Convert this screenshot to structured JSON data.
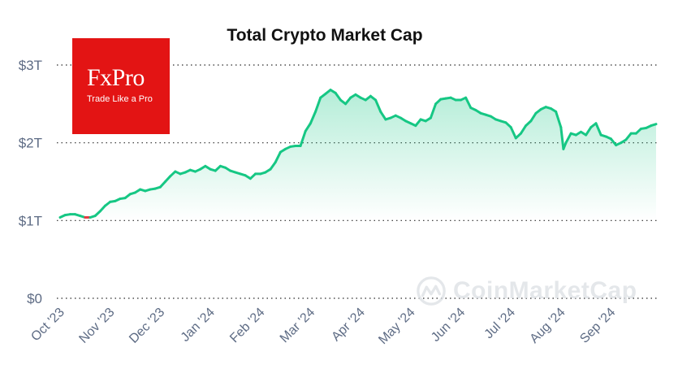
{
  "chart_data": {
    "type": "area",
    "title": "Total Crypto Market Cap",
    "unit": "USD trillions",
    "y_ticks": [
      "$0",
      "$1T",
      "$2T",
      "$3T"
    ],
    "y_tick_values": [
      0,
      1,
      2,
      3
    ],
    "ylim": [
      0,
      3
    ],
    "grid": true,
    "x_ticks": [
      "Oct '23",
      "Nov '23",
      "Dec '23",
      "Jan '24",
      "Feb '24",
      "Mar '24",
      "Apr '24",
      "May '24",
      "Jun '24",
      "Jul '24",
      "Aug '24",
      "Sep '24"
    ],
    "x_tick_months": [
      0,
      1,
      2,
      3,
      4,
      5,
      6,
      7,
      8,
      9,
      10,
      11
    ],
    "x_range_months": [
      0,
      11.9
    ],
    "series": [
      {
        "name": "Total Market Cap",
        "color": "#16c784",
        "negative_color": "#ea3943",
        "points": [
          [
            0.0,
            1.04
          ],
          [
            0.1,
            1.07
          ],
          [
            0.2,
            1.08
          ],
          [
            0.3,
            1.08
          ],
          [
            0.4,
            1.06
          ],
          [
            0.5,
            1.04
          ],
          [
            0.6,
            1.04
          ],
          [
            0.7,
            1.06
          ],
          [
            0.8,
            1.12
          ],
          [
            0.9,
            1.19
          ],
          [
            1.0,
            1.24
          ],
          [
            1.1,
            1.25
          ],
          [
            1.2,
            1.28
          ],
          [
            1.3,
            1.29
          ],
          [
            1.4,
            1.34
          ],
          [
            1.5,
            1.36
          ],
          [
            1.6,
            1.4
          ],
          [
            1.7,
            1.38
          ],
          [
            1.8,
            1.4
          ],
          [
            1.9,
            1.41
          ],
          [
            2.0,
            1.43
          ],
          [
            2.1,
            1.5
          ],
          [
            2.2,
            1.57
          ],
          [
            2.3,
            1.63
          ],
          [
            2.4,
            1.6
          ],
          [
            2.5,
            1.62
          ],
          [
            2.6,
            1.65
          ],
          [
            2.7,
            1.63
          ],
          [
            2.8,
            1.66
          ],
          [
            2.9,
            1.7
          ],
          [
            3.0,
            1.66
          ],
          [
            3.1,
            1.64
          ],
          [
            3.2,
            1.7
          ],
          [
            3.3,
            1.68
          ],
          [
            3.4,
            1.64
          ],
          [
            3.5,
            1.62
          ],
          [
            3.6,
            1.6
          ],
          [
            3.7,
            1.58
          ],
          [
            3.8,
            1.54
          ],
          [
            3.9,
            1.6
          ],
          [
            4.0,
            1.6
          ],
          [
            4.1,
            1.62
          ],
          [
            4.2,
            1.66
          ],
          [
            4.3,
            1.75
          ],
          [
            4.4,
            1.88
          ],
          [
            4.5,
            1.92
          ],
          [
            4.6,
            1.95
          ],
          [
            4.7,
            1.96
          ],
          [
            4.8,
            1.96
          ],
          [
            4.9,
            2.15
          ],
          [
            5.0,
            2.25
          ],
          [
            5.1,
            2.4
          ],
          [
            5.2,
            2.58
          ],
          [
            5.3,
            2.63
          ],
          [
            5.4,
            2.68
          ],
          [
            5.5,
            2.64
          ],
          [
            5.6,
            2.55
          ],
          [
            5.7,
            2.5
          ],
          [
            5.8,
            2.58
          ],
          [
            5.9,
            2.62
          ],
          [
            6.0,
            2.58
          ],
          [
            6.1,
            2.55
          ],
          [
            6.2,
            2.6
          ],
          [
            6.3,
            2.55
          ],
          [
            6.4,
            2.4
          ],
          [
            6.5,
            2.3
          ],
          [
            6.6,
            2.32
          ],
          [
            6.7,
            2.35
          ],
          [
            6.8,
            2.32
          ],
          [
            6.9,
            2.28
          ],
          [
            7.0,
            2.25
          ],
          [
            7.1,
            2.22
          ],
          [
            7.2,
            2.3
          ],
          [
            7.3,
            2.28
          ],
          [
            7.4,
            2.32
          ],
          [
            7.5,
            2.5
          ],
          [
            7.6,
            2.56
          ],
          [
            7.7,
            2.57
          ],
          [
            7.8,
            2.58
          ],
          [
            7.9,
            2.55
          ],
          [
            8.0,
            2.55
          ],
          [
            8.1,
            2.58
          ],
          [
            8.2,
            2.45
          ],
          [
            8.3,
            2.42
          ],
          [
            8.4,
            2.38
          ],
          [
            8.5,
            2.36
          ],
          [
            8.6,
            2.34
          ],
          [
            8.7,
            2.3
          ],
          [
            8.8,
            2.28
          ],
          [
            8.9,
            2.26
          ],
          [
            9.0,
            2.2
          ],
          [
            9.1,
            2.06
          ],
          [
            9.2,
            2.12
          ],
          [
            9.3,
            2.22
          ],
          [
            9.4,
            2.28
          ],
          [
            9.5,
            2.38
          ],
          [
            9.6,
            2.43
          ],
          [
            9.7,
            2.46
          ],
          [
            9.8,
            2.44
          ],
          [
            9.9,
            2.4
          ],
          [
            10.0,
            2.2
          ],
          [
            10.05,
            1.92
          ],
          [
            10.1,
            2.0
          ],
          [
            10.2,
            2.12
          ],
          [
            10.3,
            2.1
          ],
          [
            10.4,
            2.14
          ],
          [
            10.5,
            2.1
          ],
          [
            10.6,
            2.2
          ],
          [
            10.7,
            2.25
          ],
          [
            10.8,
            2.1
          ],
          [
            10.9,
            2.08
          ],
          [
            11.0,
            2.05
          ],
          [
            11.1,
            1.97
          ],
          [
            11.2,
            2.0
          ],
          [
            11.3,
            2.04
          ],
          [
            11.4,
            2.12
          ],
          [
            11.5,
            2.12
          ],
          [
            11.6,
            2.18
          ],
          [
            11.7,
            2.19
          ],
          [
            11.8,
            2.22
          ],
          [
            11.9,
            2.24
          ]
        ]
      }
    ]
  },
  "logo": {
    "name": "FxPro",
    "tagline": "Trade Like a Pro",
    "background_color": "#e31414"
  },
  "watermark": {
    "text": "CoinMarketCap",
    "icon": "coinmarketcap-icon"
  }
}
